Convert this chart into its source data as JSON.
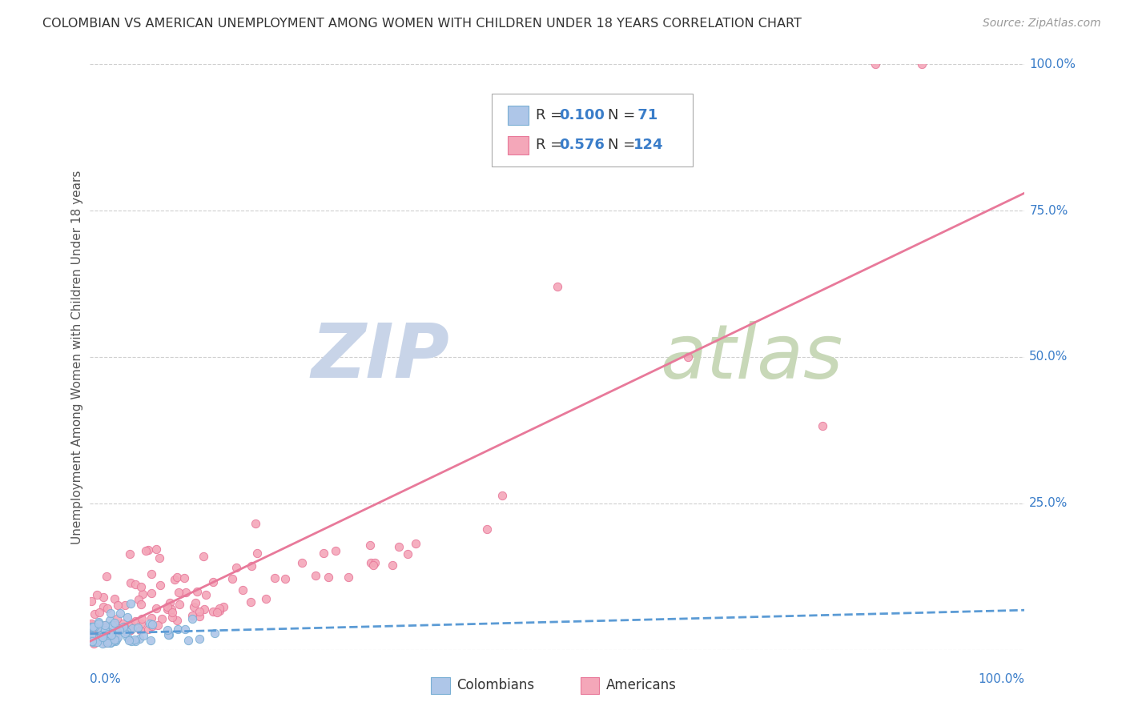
{
  "title": "COLOMBIAN VS AMERICAN UNEMPLOYMENT AMONG WOMEN WITH CHILDREN UNDER 18 YEARS CORRELATION CHART",
  "source": "Source: ZipAtlas.com",
  "ylabel": "Unemployment Among Women with Children Under 18 years",
  "R_colombians": 0.1,
  "N_colombians": 71,
  "R_americans": 0.576,
  "N_americans": 124,
  "colombian_color": "#aec6e8",
  "colombian_edge": "#7aafd4",
  "american_color": "#f4a7b9",
  "american_edge": "#e8799a",
  "trendline_colombian_color": "#5b9bd5",
  "trendline_american_color": "#e8799a",
  "watermark_zip_color": "#c8d4e8",
  "watermark_atlas_color": "#c8d8b8",
  "background_color": "#ffffff",
  "grid_color": "#bbbbbb",
  "right_axis_color": "#3a7dc9",
  "legend_colombians": "Colombians",
  "legend_americans": "Americans",
  "xlim": [
    0.0,
    1.0
  ],
  "ylim": [
    0.0,
    1.0
  ],
  "title_fontsize": 11.5,
  "source_fontsize": 10,
  "axis_label_fontsize": 11,
  "legend_fontsize": 13,
  "watermark_fontsize_zip": 68,
  "watermark_fontsize_atlas": 68
}
